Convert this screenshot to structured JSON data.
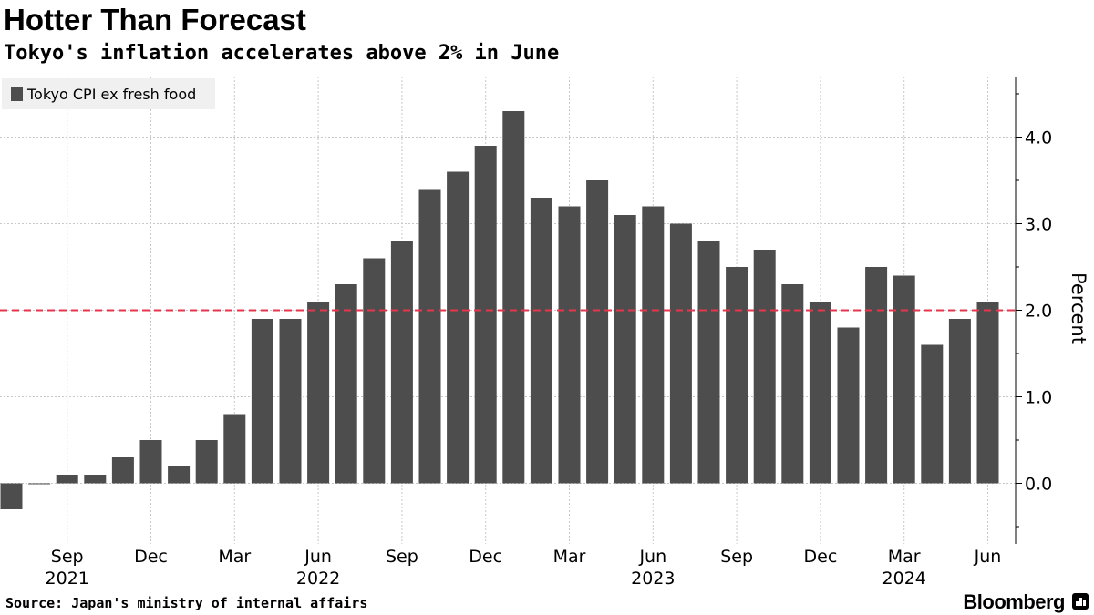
{
  "header": {
    "title": "Hotter Than Forecast",
    "subtitle": "Tokyo's inflation accelerates above 2% in June"
  },
  "footer": {
    "source": "Source: Japan's ministry of internal affairs",
    "brand": "Bloomberg"
  },
  "colors": {
    "bar": "#4d4d4d",
    "reference_line": "#e8354c",
    "grid": "#c8c8c8",
    "legend_bg": "#f0f0f0"
  },
  "chart_data": {
    "type": "bar",
    "title": "Hotter Than Forecast",
    "subtitle": "Tokyo's inflation accelerates above 2% in June",
    "xlabel": "",
    "ylabel": "Percent",
    "ylim": [
      -0.7,
      4.7
    ],
    "yticks": [
      0.0,
      1.0,
      2.0,
      3.0,
      4.0
    ],
    "ytick_labels": [
      "0.0",
      "1.0",
      "2.0",
      "3.0",
      "4.0"
    ],
    "grid": true,
    "legend_position": "top-left",
    "reference_line": {
      "value": 2.0,
      "style": "dashed"
    },
    "series": [
      {
        "name": "Tokyo CPI ex fresh food",
        "categories": [
          "Jul 2021",
          "Aug 2021",
          "Sep 2021",
          "Oct 2021",
          "Nov 2021",
          "Dec 2021",
          "Jan 2022",
          "Feb 2022",
          "Mar 2022",
          "Apr 2022",
          "May 2022",
          "Jun 2022",
          "Jul 2022",
          "Aug 2022",
          "Sep 2022",
          "Oct 2022",
          "Nov 2022",
          "Dec 2022",
          "Jan 2023",
          "Feb 2023",
          "Mar 2023",
          "Apr 2023",
          "May 2023",
          "Jun 2023",
          "Jul 2023",
          "Aug 2023",
          "Sep 2023",
          "Oct 2023",
          "Nov 2023",
          "Dec 2023",
          "Jan 2024",
          "Feb 2024",
          "Mar 2024",
          "Apr 2024",
          "May 2024",
          "Jun 2024"
        ],
        "values": [
          -0.3,
          0.0,
          0.1,
          0.1,
          0.3,
          0.5,
          0.2,
          0.5,
          0.8,
          1.9,
          1.9,
          2.1,
          2.3,
          2.6,
          2.8,
          3.4,
          3.6,
          3.9,
          4.3,
          3.3,
          3.2,
          3.5,
          3.1,
          3.2,
          3.0,
          2.8,
          2.5,
          2.7,
          2.3,
          2.1,
          1.8,
          2.5,
          2.4,
          1.6,
          1.9,
          2.1
        ]
      }
    ],
    "x_tick_labels": [
      {
        "index": 2,
        "month": "Sep",
        "year": "2021"
      },
      {
        "index": 5,
        "month": "Dec",
        "year": ""
      },
      {
        "index": 8,
        "month": "Mar",
        "year": ""
      },
      {
        "index": 11,
        "month": "Jun",
        "year": "2022"
      },
      {
        "index": 14,
        "month": "Sep",
        "year": ""
      },
      {
        "index": 17,
        "month": "Dec",
        "year": ""
      },
      {
        "index": 20,
        "month": "Mar",
        "year": ""
      },
      {
        "index": 23,
        "month": "Jun",
        "year": "2023"
      },
      {
        "index": 26,
        "month": "Sep",
        "year": ""
      },
      {
        "index": 29,
        "month": "Dec",
        "year": ""
      },
      {
        "index": 32,
        "month": "Mar",
        "year": "2024"
      },
      {
        "index": 35,
        "month": "Jun",
        "year": ""
      }
    ]
  }
}
